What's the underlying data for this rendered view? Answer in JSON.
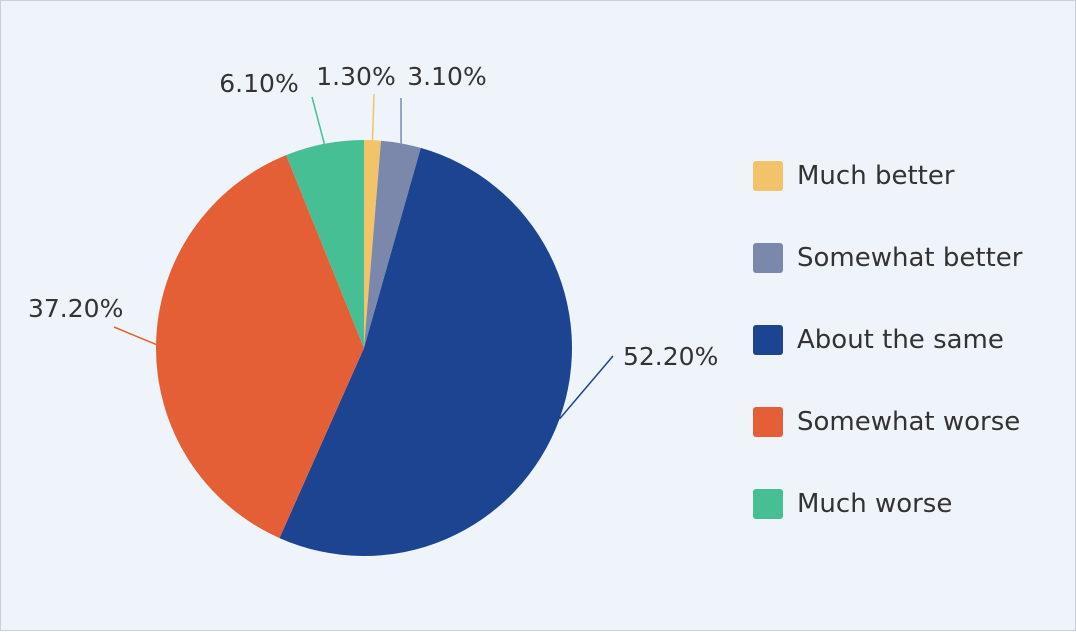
{
  "chart_data": {
    "type": "pie",
    "title": "",
    "categories": [
      "Much better",
      "Somewhat better",
      "About the same",
      "Somewhat worse",
      "Much worse"
    ],
    "values": [
      1.3,
      3.1,
      52.2,
      37.2,
      6.1
    ],
    "data_labels": [
      "1.30%",
      "3.10%",
      "52.20%",
      "37.20%",
      "6.10%"
    ],
    "colors": [
      "#f2c46a",
      "#7b88ac",
      "#1c4491",
      "#e55f36",
      "#46bf95"
    ],
    "legend_position": "right"
  }
}
